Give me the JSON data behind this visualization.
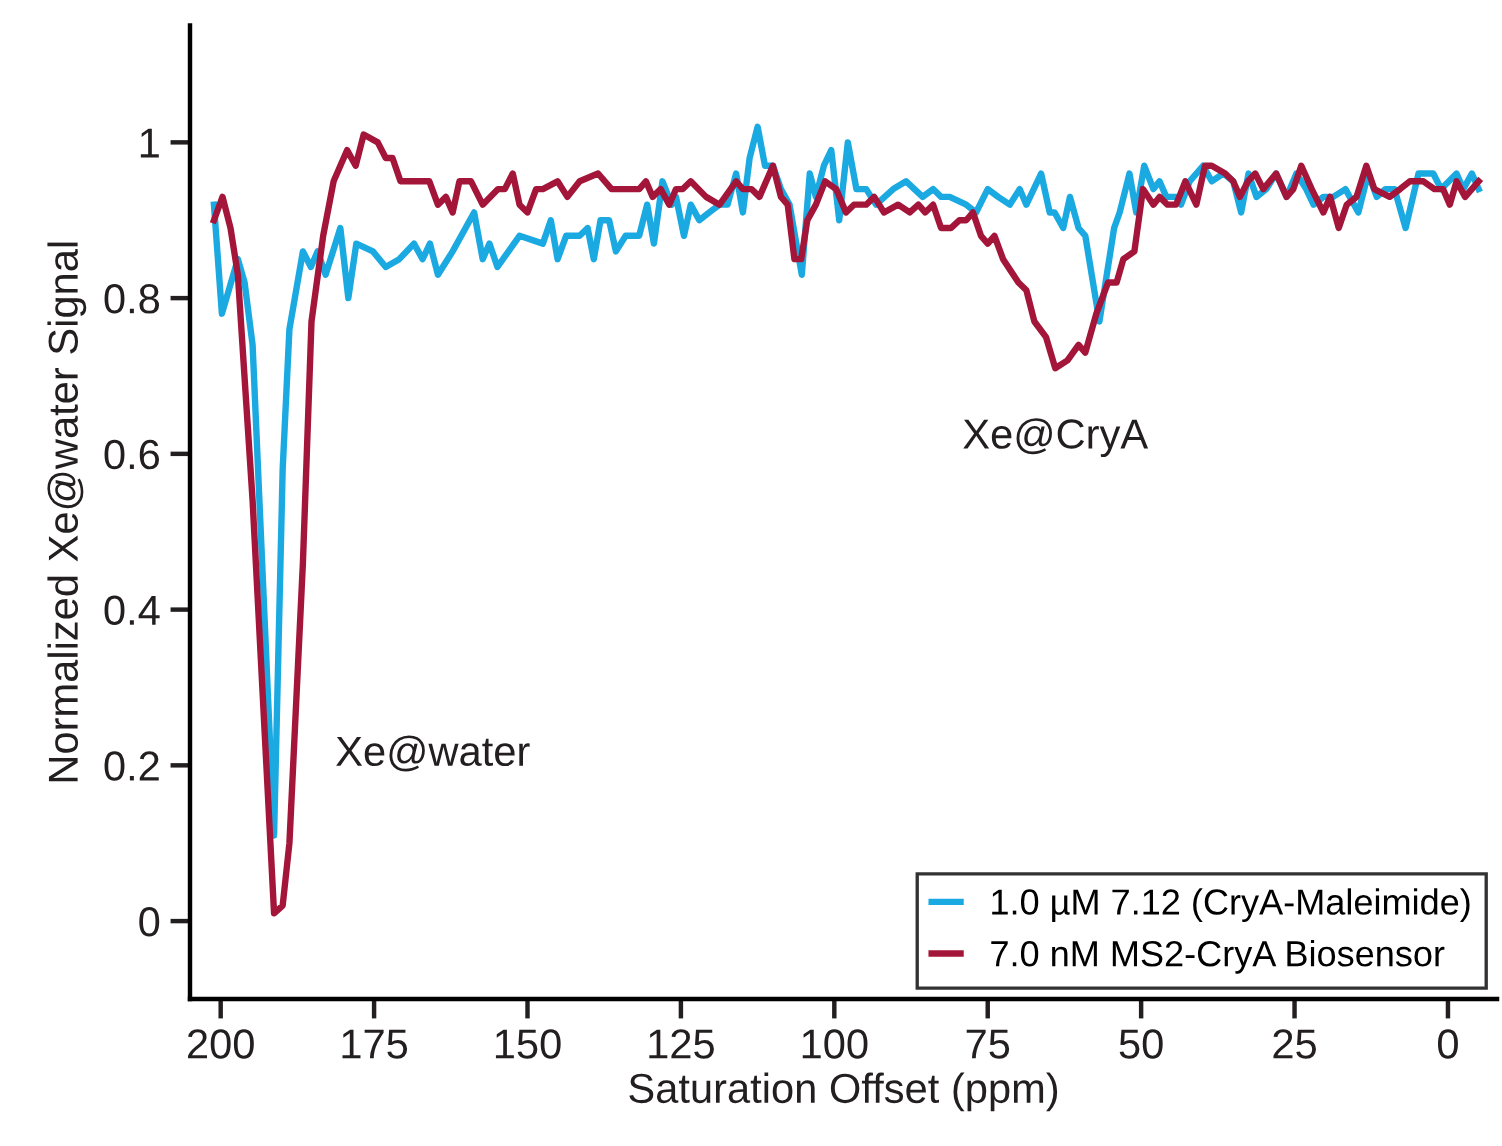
{
  "chart_data": {
    "type": "line",
    "xlabel": "Saturation Offset (ppm)",
    "ylabel": "Normalized Xe@water Signal",
    "xlim": [
      205,
      -8
    ],
    "xticks": [
      200,
      175,
      150,
      125,
      100,
      75,
      50,
      25,
      0
    ],
    "ylim": [
      -0.1,
      1.15
    ],
    "yticks": [
      0,
      0.2,
      0.4,
      0.6,
      0.8,
      1
    ],
    "grid": false,
    "legend": "bottom right",
    "marker": "none",
    "line_style": "solid",
    "annotations": [
      {
        "text": "Xe@water",
        "x": 191.3,
        "y": 0.11
      },
      {
        "text": "Xe@CryA",
        "x": 64.0,
        "y": 0.71
      }
    ],
    "series": [
      {
        "name": "1.0 µM 7.12 (CryA-Maleimide)",
        "color": "#1ba9e1",
        "x": [
          201.1,
          199.8,
          197.2,
          196.1,
          194.8,
          191.3,
          189.9,
          188.8,
          186.6,
          185.3,
          184.2,
          182.9,
          180.5,
          179.2,
          177.9,
          175.2,
          173.1,
          170.9,
          168.5,
          167.1,
          165.9,
          164.6,
          162.2,
          158.7,
          157.3,
          156.2,
          154.9,
          151.3,
          147.5,
          146.2,
          145.1,
          143.7,
          141.5,
          140.2,
          139.2,
          138.1,
          136.7,
          135.6,
          134.0,
          131.8,
          130.5,
          129.4,
          128.0,
          126.5,
          125.8,
          124.5,
          123.4,
          122.0,
          120.4,
          118.7,
          117.4,
          116.0,
          114.9,
          113.8,
          112.5,
          111.3,
          110.0,
          108.7,
          107.3,
          105.3,
          104.0,
          103.0,
          101.7,
          100.5,
          99.2,
          97.8,
          96.4,
          94.8,
          93.2,
          90.4,
          88.3,
          85.6,
          83.9,
          82.6,
          81.2,
          78.5,
          76.9,
          75.0,
          73.3,
          71.4,
          69.8,
          68.7,
          66.3,
          64.9,
          64.1,
          62.7,
          61.6,
          60.2,
          59.1,
          56.8,
          54.4,
          53.5,
          51.9,
          50.8,
          49.5,
          48.0,
          47.0,
          45.9,
          44.3,
          43.5,
          42.1,
          39.9,
          38.5,
          36.6,
          35.0,
          33.7,
          32.5,
          31.2,
          29.6,
          28.0,
          26.3,
          24.7,
          23.1,
          21.9,
          20.3,
          18.7,
          16.7,
          14.6,
          13.0,
          11.6,
          10.2,
          8.7,
          6.9,
          4.8,
          2.4,
          1.1,
          -1.4,
          -2.5,
          -3.9,
          -5.0
        ],
        "values": [
          0.92,
          0.78,
          0.85,
          0.82,
          0.74,
          0.11,
          0.58,
          0.76,
          0.86,
          0.84,
          0.86,
          0.83,
          0.89,
          0.8,
          0.87,
          0.86,
          0.84,
          0.85,
          0.87,
          0.85,
          0.87,
          0.83,
          0.86,
          0.91,
          0.85,
          0.87,
          0.84,
          0.88,
          0.87,
          0.9,
          0.85,
          0.88,
          0.88,
          0.89,
          0.85,
          0.9,
          0.9,
          0.86,
          0.88,
          0.88,
          0.92,
          0.87,
          0.95,
          0.92,
          0.93,
          0.88,
          0.92,
          0.9,
          0.91,
          0.92,
          0.92,
          0.96,
          0.91,
          0.98,
          1.02,
          0.97,
          0.97,
          0.94,
          0.92,
          0.83,
          0.96,
          0.93,
          0.97,
          0.99,
          0.9,
          1.0,
          0.94,
          0.94,
          0.92,
          0.94,
          0.95,
          0.93,
          0.94,
          0.93,
          0.93,
          0.92,
          0.91,
          0.94,
          0.93,
          0.92,
          0.94,
          0.92,
          0.96,
          0.91,
          0.91,
          0.89,
          0.93,
          0.89,
          0.88,
          0.77,
          0.89,
          0.91,
          0.96,
          0.91,
          0.97,
          0.94,
          0.95,
          0.93,
          0.93,
          0.92,
          0.95,
          0.97,
          0.95,
          0.96,
          0.95,
          0.91,
          0.96,
          0.93,
          0.94,
          0.96,
          0.93,
          0.96,
          0.94,
          0.92,
          0.93,
          0.93,
          0.94,
          0.91,
          0.96,
          0.93,
          0.94,
          0.94,
          0.89,
          0.96,
          0.96,
          0.94,
          0.96,
          0.94,
          0.96,
          0.94
        ]
      },
      {
        "name": "7.0 nM MS2-CryA Biosensor",
        "color": "#a3163a",
        "x": [
          201.1,
          199.7,
          198.4,
          197.2,
          194.8,
          191.3,
          189.9,
          188.8,
          186.6,
          185.2,
          183.3,
          181.6,
          179.4,
          178.0,
          176.7,
          174.4,
          173.1,
          172.0,
          170.7,
          168.2,
          166.0,
          164.6,
          163.3,
          162.2,
          161.1,
          159.2,
          157.3,
          154.8,
          153.7,
          152.4,
          151.3,
          150.0,
          148.6,
          147.5,
          145.1,
          143.5,
          141.5,
          138.5,
          136.3,
          134.0,
          132.8,
          131.8,
          130.7,
          129.6,
          128.3,
          126.9,
          125.8,
          124.7,
          123.4,
          120.9,
          118.7,
          116.0,
          114.9,
          113.5,
          112.2,
          110.0,
          108.7,
          107.6,
          106.5,
          105.4,
          104.4,
          103.0,
          101.5,
          99.7,
          98.1,
          96.8,
          94.8,
          93.5,
          91.9,
          89.6,
          87.7,
          86.3,
          85.2,
          83.9,
          82.6,
          81.0,
          79.6,
          78.5,
          77.4,
          76.1,
          75.0,
          73.9,
          72.5,
          70.0,
          68.7,
          67.4,
          65.5,
          64.0,
          62.0,
          60.2,
          59.1,
          57.3,
          55.4,
          54.0,
          52.9,
          51.1,
          49.7,
          48.0,
          47.0,
          45.7,
          44.3,
          42.8,
          41.0,
          39.6,
          38.5,
          36.3,
          35.0,
          33.9,
          32.6,
          31.4,
          30.1,
          28.0,
          26.3,
          25.2,
          23.9,
          22.2,
          20.3,
          19.2,
          17.8,
          16.5,
          14.9,
          13.3,
          12.0,
          9.5,
          7.8,
          6.2,
          4.0,
          2.2,
          0.8,
          -0.3,
          -1.4,
          -2.8,
          -5.0
        ],
        "values": [
          0.9,
          0.93,
          0.89,
          0.83,
          0.54,
          0.01,
          0.02,
          0.1,
          0.46,
          0.77,
          0.88,
          0.95,
          0.99,
          0.97,
          1.01,
          1.0,
          0.98,
          0.98,
          0.95,
          0.95,
          0.95,
          0.92,
          0.93,
          0.91,
          0.95,
          0.95,
          0.92,
          0.94,
          0.94,
          0.96,
          0.92,
          0.91,
          0.94,
          0.94,
          0.95,
          0.93,
          0.95,
          0.96,
          0.94,
          0.94,
          0.94,
          0.94,
          0.95,
          0.93,
          0.94,
          0.92,
          0.94,
          0.94,
          0.95,
          0.93,
          0.92,
          0.95,
          0.94,
          0.94,
          0.93,
          0.97,
          0.93,
          0.92,
          0.85,
          0.85,
          0.9,
          0.92,
          0.95,
          0.94,
          0.91,
          0.92,
          0.92,
          0.93,
          0.91,
          0.92,
          0.91,
          0.92,
          0.91,
          0.92,
          0.89,
          0.89,
          0.9,
          0.9,
          0.91,
          0.88,
          0.87,
          0.88,
          0.85,
          0.82,
          0.81,
          0.77,
          0.75,
          0.71,
          0.72,
          0.74,
          0.73,
          0.78,
          0.82,
          0.82,
          0.85,
          0.86,
          0.94,
          0.92,
          0.93,
          0.92,
          0.92,
          0.95,
          0.92,
          0.97,
          0.97,
          0.96,
          0.95,
          0.93,
          0.95,
          0.96,
          0.94,
          0.96,
          0.93,
          0.94,
          0.97,
          0.94,
          0.91,
          0.93,
          0.89,
          0.92,
          0.93,
          0.97,
          0.94,
          0.93,
          0.94,
          0.95,
          0.95,
          0.94,
          0.94,
          0.92,
          0.95,
          0.93,
          0.95
        ]
      }
    ]
  }
}
